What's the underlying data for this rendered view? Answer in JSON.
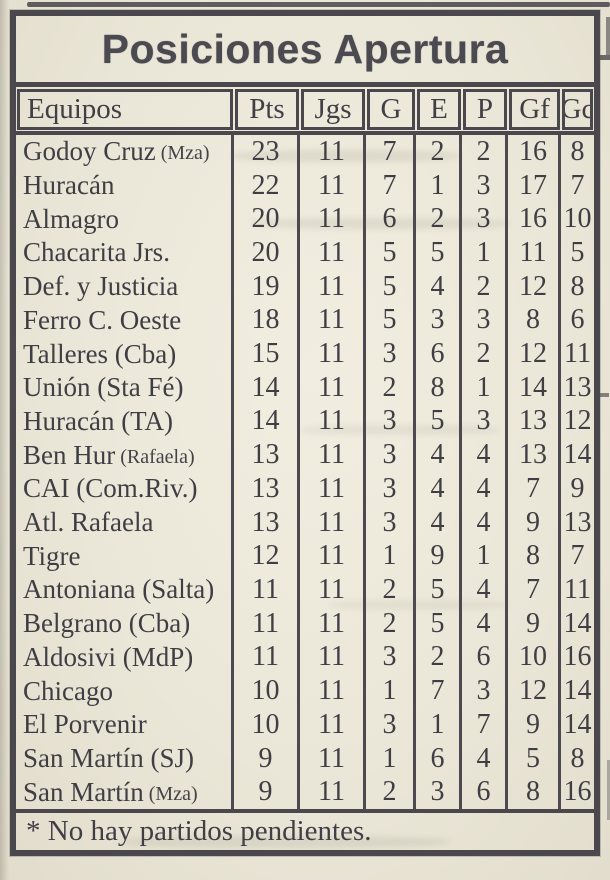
{
  "page": {
    "title_banner": "Posiciones Apertura",
    "footnote": "* No hay partidos pendientes."
  },
  "table": {
    "columns": [
      "Equipos",
      "Pts",
      "Jgs",
      "G",
      "E",
      "P",
      "Gf",
      "Gc"
    ],
    "rows": [
      {
        "team": "Godoy Cruz",
        "team_small": "(Mza)",
        "vals": [
          23,
          11,
          7,
          2,
          2,
          16,
          8
        ]
      },
      {
        "team": "Huracán",
        "team_small": "",
        "vals": [
          22,
          11,
          7,
          1,
          3,
          17,
          7
        ]
      },
      {
        "team": "Almagro",
        "team_small": "",
        "vals": [
          20,
          11,
          6,
          2,
          3,
          16,
          10
        ]
      },
      {
        "team": "Chacarita Jrs.",
        "team_small": "",
        "vals": [
          20,
          11,
          5,
          5,
          1,
          11,
          5
        ]
      },
      {
        "team": "Def. y Justicia",
        "team_small": "",
        "vals": [
          19,
          11,
          5,
          4,
          2,
          12,
          8
        ]
      },
      {
        "team": "Ferro C. Oeste",
        "team_small": "",
        "vals": [
          18,
          11,
          5,
          3,
          3,
          8,
          6
        ]
      },
      {
        "team": "Talleres (Cba)",
        "team_small": "",
        "vals": [
          15,
          11,
          3,
          6,
          2,
          12,
          11
        ]
      },
      {
        "team": "Unión (Sta Fé)",
        "team_small": "",
        "vals": [
          14,
          11,
          2,
          8,
          1,
          14,
          13
        ]
      },
      {
        "team": "Huracán (TA)",
        "team_small": "",
        "vals": [
          14,
          11,
          3,
          5,
          3,
          13,
          12
        ]
      },
      {
        "team": "Ben Hur",
        "team_small": "(Rafaela)",
        "vals": [
          13,
          11,
          3,
          4,
          4,
          13,
          14
        ]
      },
      {
        "team": "CAI (Com.Riv.)",
        "team_small": "",
        "vals": [
          13,
          11,
          3,
          4,
          4,
          7,
          9
        ]
      },
      {
        "team": "Atl. Rafaela",
        "team_small": "",
        "vals": [
          13,
          11,
          3,
          4,
          4,
          9,
          13
        ]
      },
      {
        "team": "Tigre",
        "team_small": "",
        "vals": [
          12,
          11,
          1,
          9,
          1,
          8,
          7
        ]
      },
      {
        "team": "Antoniana (Salta)",
        "team_small": "",
        "vals": [
          11,
          11,
          2,
          5,
          4,
          7,
          11
        ]
      },
      {
        "team": "Belgrano (Cba)",
        "team_small": "",
        "vals": [
          11,
          11,
          2,
          5,
          4,
          9,
          14
        ]
      },
      {
        "team": "Aldosivi (MdP)",
        "team_small": "",
        "vals": [
          11,
          11,
          3,
          2,
          6,
          10,
          16
        ]
      },
      {
        "team": "Chicago",
        "team_small": "",
        "vals": [
          10,
          11,
          1,
          7,
          3,
          12,
          14
        ]
      },
      {
        "team": "El Porvenir",
        "team_small": "",
        "vals": [
          10,
          11,
          3,
          1,
          7,
          9,
          14
        ]
      },
      {
        "team": "San Martín (SJ)",
        "team_small": "",
        "vals": [
          9,
          11,
          1,
          6,
          4,
          5,
          8
        ]
      },
      {
        "team": "San Martín",
        "team_small": "(Mza)",
        "vals": [
          9,
          11,
          2,
          3,
          6,
          8,
          16
        ]
      }
    ]
  },
  "colors": {
    "paper": "#ece8da",
    "ink": "#4a484d"
  }
}
